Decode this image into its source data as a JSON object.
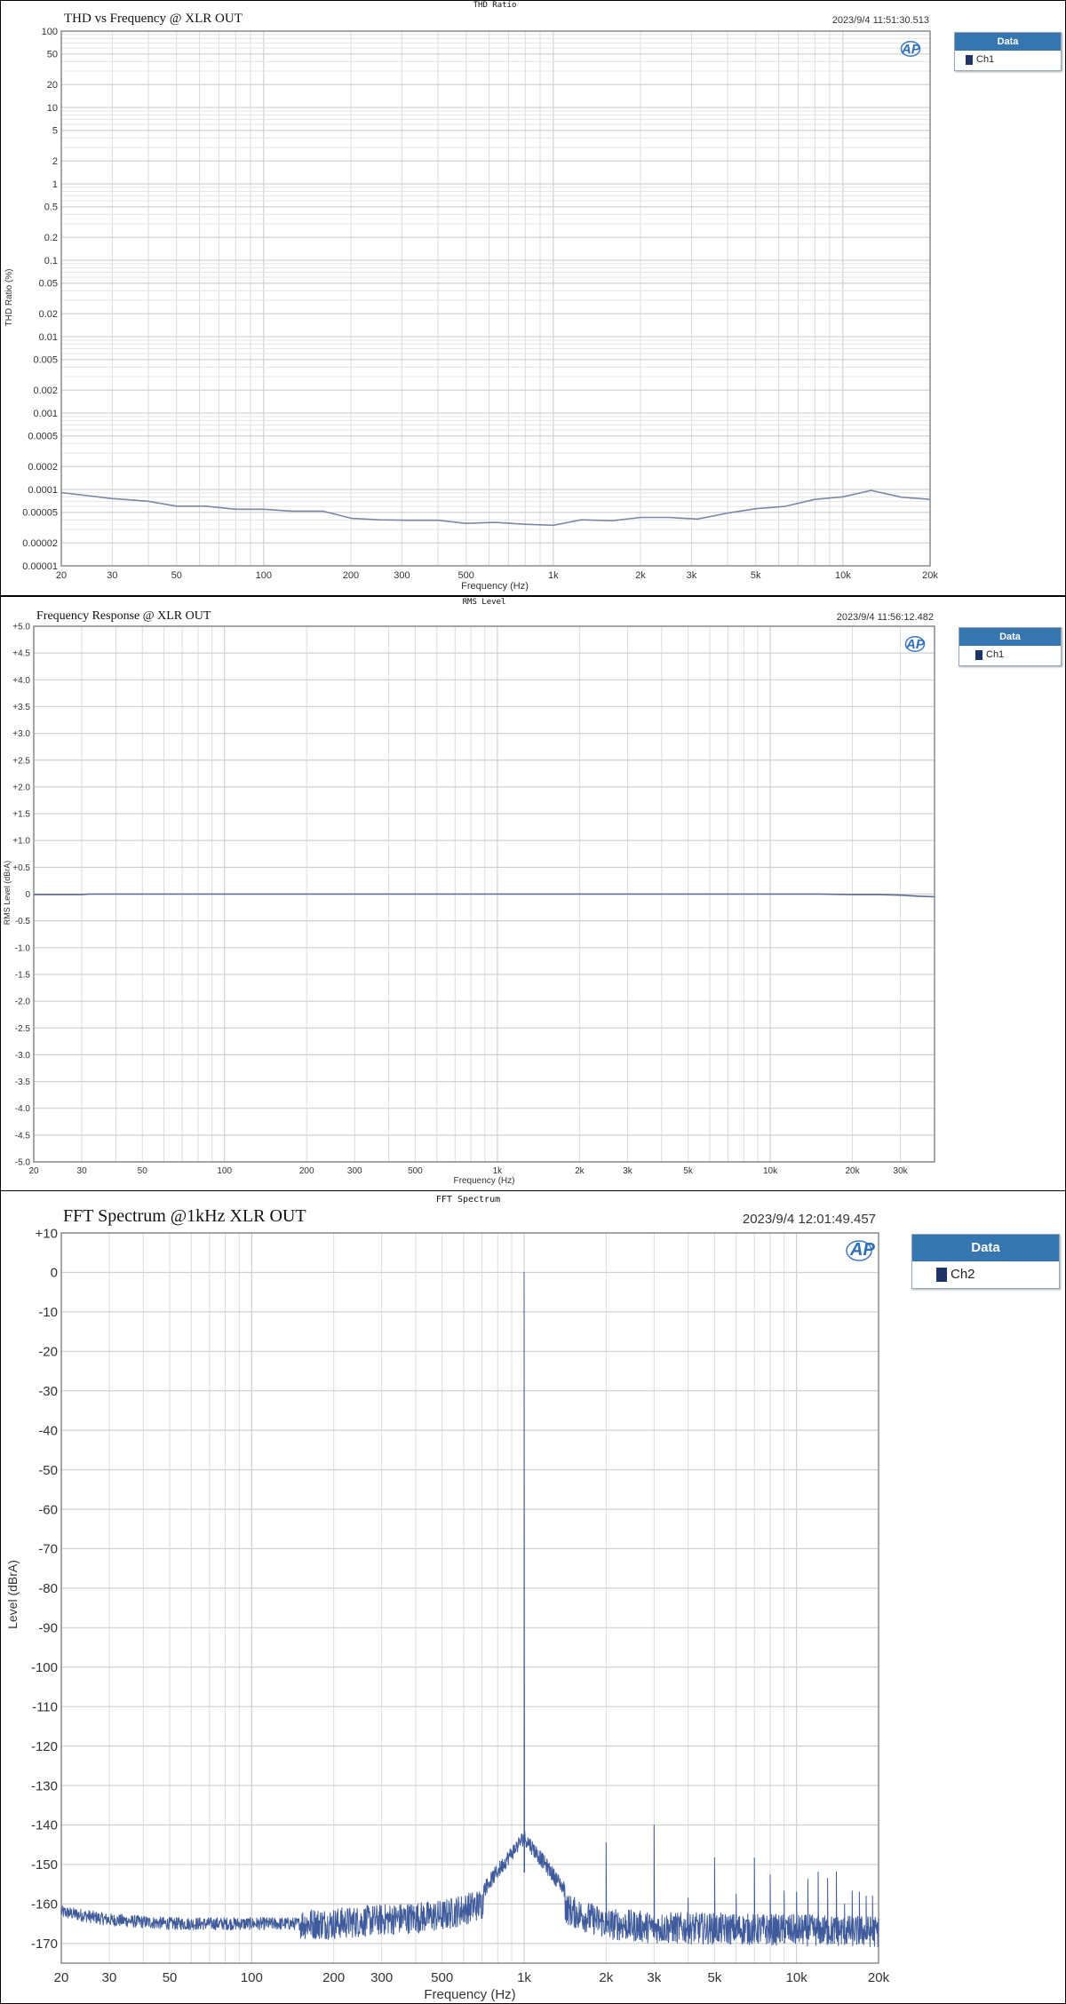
{
  "chart_data": [
    {
      "type": "line",
      "header": "THD Ratio",
      "title": "THD vs Frequency @ XLR OUT",
      "timestamp": "2023/9/4 11:51:30.513",
      "xlabel": "Frequency (Hz)",
      "ylabel": "THD Ratio (%)",
      "xscale": "log",
      "yscale": "log",
      "xlim": [
        20,
        20000
      ],
      "ylim": [
        1e-05,
        100
      ],
      "grid": true,
      "legend": {
        "title": "Data",
        "items": [
          "Ch1"
        ],
        "placement": "right"
      },
      "line_color": "#7d88a8",
      "xticks": [
        [
          20,
          "20"
        ],
        [
          30,
          "30"
        ],
        [
          50,
          "50"
        ],
        [
          100,
          "100"
        ],
        [
          200,
          "200"
        ],
        [
          300,
          "300"
        ],
        [
          500,
          "500"
        ],
        [
          1000,
          "1k"
        ],
        [
          2000,
          "2k"
        ],
        [
          3000,
          "3k"
        ],
        [
          5000,
          "5k"
        ],
        [
          10000,
          "10k"
        ],
        [
          20000,
          "20k"
        ]
      ],
      "yticks": [
        [
          100,
          "100"
        ],
        [
          50,
          "50"
        ],
        [
          20,
          "20"
        ],
        [
          10,
          "10"
        ],
        [
          5,
          "5"
        ],
        [
          2,
          "2"
        ],
        [
          1,
          "1"
        ],
        [
          0.5,
          "0.5"
        ],
        [
          0.2,
          "0.2"
        ],
        [
          0.1,
          "0.1"
        ],
        [
          0.05,
          "0.05"
        ],
        [
          0.02,
          "0.02"
        ],
        [
          0.01,
          "0.01"
        ],
        [
          0.005,
          "0.005"
        ],
        [
          0.002,
          "0.002"
        ],
        [
          0.001,
          "0.001"
        ],
        [
          0.0005,
          "0.0005"
        ],
        [
          0.0002,
          "0.0002"
        ],
        [
          0.0001,
          "0.0001"
        ],
        [
          5e-05,
          "0.00005"
        ],
        [
          2e-05,
          "0.00002"
        ],
        [
          1e-05,
          "0.00001"
        ]
      ],
      "series": [
        {
          "name": "Ch1",
          "x": [
            20,
            30,
            40,
            50,
            63,
            80,
            100,
            125,
            160,
            200,
            250,
            315,
            400,
            500,
            630,
            800,
            1000,
            1250,
            1600,
            2000,
            2500,
            3150,
            4000,
            5000,
            6300,
            8000,
            10000,
            12500,
            16000,
            20000
          ],
          "y": [
            9.1e-05,
            7.6e-05,
            7e-05,
            6.05e-05,
            6.05e-05,
            5.5e-05,
            5.5e-05,
            5.2e-05,
            5.2e-05,
            4.2e-05,
            4e-05,
            3.95e-05,
            3.95e-05,
            3.6e-05,
            3.7e-05,
            3.5e-05,
            3.4e-05,
            4e-05,
            3.9e-05,
            4.3e-05,
            4.3e-05,
            4.1e-05,
            4.9e-05,
            5.6e-05,
            6e-05,
            7.4e-05,
            8e-05,
            9.7e-05,
            7.9e-05,
            7.4e-05
          ]
        }
      ]
    },
    {
      "type": "line",
      "header": "RMS Level",
      "title": "Frequency Response @ XLR OUT",
      "timestamp": "2023/9/4 11:56:12.482",
      "xlabel": "Frequency (Hz)",
      "ylabel": "RMS Level (dBrA)",
      "xscale": "log",
      "yscale": "linear",
      "xlim": [
        20,
        40000
      ],
      "ylim": [
        -5,
        5
      ],
      "grid": true,
      "legend": {
        "title": "Data",
        "items": [
          "Ch1"
        ],
        "placement": "right"
      },
      "line_color": "#5a6a90",
      "xticks": [
        [
          20,
          "20"
        ],
        [
          30,
          "30"
        ],
        [
          50,
          "50"
        ],
        [
          100,
          "100"
        ],
        [
          200,
          "200"
        ],
        [
          300,
          "300"
        ],
        [
          500,
          "500"
        ],
        [
          1000,
          "1k"
        ],
        [
          2000,
          "2k"
        ],
        [
          3000,
          "3k"
        ],
        [
          5000,
          "5k"
        ],
        [
          10000,
          "10k"
        ],
        [
          20000,
          "20k"
        ],
        [
          30000,
          "30k"
        ]
      ],
      "yticks": [
        [
          5,
          "+5.0"
        ],
        [
          4.5,
          "+4.5"
        ],
        [
          4,
          "+4.0"
        ],
        [
          3.5,
          "+3.5"
        ],
        [
          3,
          "+3.0"
        ],
        [
          2.5,
          "+2.5"
        ],
        [
          2,
          "+2.0"
        ],
        [
          1.5,
          "+1.5"
        ],
        [
          1,
          "+1.0"
        ],
        [
          0.5,
          "+0.5"
        ],
        [
          0,
          "0"
        ],
        [
          -0.5,
          "-0.5"
        ],
        [
          -1,
          "-1.0"
        ],
        [
          -1.5,
          "-1.5"
        ],
        [
          -2,
          "-2.0"
        ],
        [
          -2.5,
          "-2.5"
        ],
        [
          -3,
          "-3.0"
        ],
        [
          -3.5,
          "-3.5"
        ],
        [
          -4,
          "-4.0"
        ],
        [
          -4.5,
          "-4.5"
        ],
        [
          -5,
          "-5.0"
        ]
      ],
      "series": [
        {
          "name": "Ch1",
          "x": [
            20,
            30,
            32,
            100,
            1000,
            10000,
            15000,
            20000,
            25000,
            30000,
            35000,
            40000
          ],
          "y": [
            -0.01,
            -0.01,
            0.0,
            0.0,
            0.0,
            0.0,
            0.0,
            -0.01,
            -0.01,
            -0.02,
            -0.04,
            -0.05
          ]
        }
      ]
    },
    {
      "type": "line",
      "header": "FFT Spectrum",
      "title": "FFT Spectrum @1kHz XLR OUT",
      "timestamp": "2023/9/4 12:01:49.457",
      "xlabel": "Frequency (Hz)",
      "ylabel": "Level (dBrA)",
      "xscale": "log",
      "yscale": "linear",
      "xlim": [
        20,
        20000
      ],
      "ylim": [
        -175,
        10
      ],
      "grid": true,
      "legend": {
        "title": "Data",
        "items": [
          "Ch2"
        ],
        "placement": "right"
      },
      "line_color": "#3f5b9b",
      "xticks": [
        [
          20,
          "20"
        ],
        [
          30,
          "30"
        ],
        [
          50,
          "50"
        ],
        [
          100,
          "100"
        ],
        [
          200,
          "200"
        ],
        [
          300,
          "300"
        ],
        [
          500,
          "500"
        ],
        [
          1000,
          "1k"
        ],
        [
          2000,
          "2k"
        ],
        [
          3000,
          "3k"
        ],
        [
          5000,
          "5k"
        ],
        [
          10000,
          "10k"
        ],
        [
          20000,
          "20k"
        ]
      ],
      "yticks": [
        [
          10,
          "+10"
        ],
        [
          0,
          "0"
        ],
        [
          -10,
          "-10"
        ],
        [
          -20,
          "-20"
        ],
        [
          -30,
          "-30"
        ],
        [
          -40,
          "-40"
        ],
        [
          -50,
          "-50"
        ],
        [
          -60,
          "-60"
        ],
        [
          -70,
          "-70"
        ],
        [
          -80,
          "-80"
        ],
        [
          -90,
          "-90"
        ],
        [
          -100,
          "-100"
        ],
        [
          -110,
          "-110"
        ],
        [
          -120,
          "-120"
        ],
        [
          -130,
          "-130"
        ],
        [
          -140,
          "-140"
        ],
        [
          -150,
          "-150"
        ],
        [
          -160,
          "-160"
        ],
        [
          -170,
          "-170"
        ]
      ],
      "series": [
        {
          "name": "Ch2",
          "peaks": [
            [
              1000,
              0
            ],
            [
              2000,
              -144.5
            ],
            [
              3000,
              -140
            ],
            [
              4000,
              -158.5
            ],
            [
              5000,
              -148.3
            ],
            [
              6000,
              -157.5
            ],
            [
              7000,
              -148.3
            ],
            [
              8000,
              -152.6
            ],
            [
              9000,
              -156.7
            ],
            [
              10000,
              -157
            ],
            [
              11000,
              -153.7
            ],
            [
              12000,
              -151.9
            ],
            [
              13000,
              -153.5
            ],
            [
              14000,
              -151.9
            ],
            [
              15000,
              -160
            ],
            [
              16000,
              -156.7
            ],
            [
              17000,
              -157
            ],
            [
              18000,
              -158
            ],
            [
              19000,
              -158
            ]
          ],
          "noise_floor": [
            [
              20,
              -162
            ],
            [
              30,
              -164
            ],
            [
              50,
              -165
            ],
            [
              100,
              -165
            ],
            [
              200,
              -165
            ],
            [
              300,
              -164
            ],
            [
              500,
              -163
            ],
            [
              700,
              -160
            ],
            [
              900,
              -155
            ],
            [
              1000,
              -150
            ],
            [
              1100,
              -156
            ],
            [
              1500,
              -162
            ],
            [
              2000,
              -165
            ],
            [
              3000,
              -166
            ],
            [
              20000,
              -167
            ]
          ],
          "noise_spread_db": 4
        }
      ]
    }
  ]
}
